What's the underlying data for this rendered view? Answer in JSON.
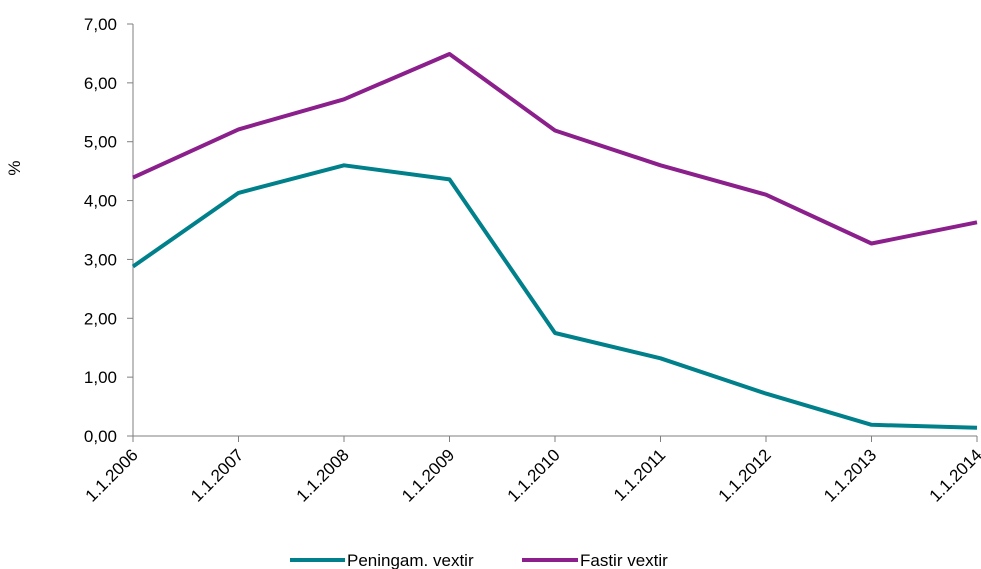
{
  "chart_data": {
    "type": "line",
    "title": "",
    "xlabel": "",
    "ylabel": "%",
    "categories": [
      "1.1.2006",
      "1.1.2007",
      "1.1.2008",
      "1.1.2009",
      "1.1.2010",
      "1.1.2011",
      "1.1.2012",
      "1.1.2013",
      "1.1.2014"
    ],
    "y_ticks": [
      "0,00",
      "1,00",
      "2,00",
      "3,00",
      "4,00",
      "5,00",
      "6,00",
      "7,00"
    ],
    "ylim": [
      0,
      7
    ],
    "grid": false,
    "legend_position": "bottom",
    "series": [
      {
        "name": "Peningam. vextir",
        "color": "#00808a",
        "values": [
          2.88,
          4.13,
          4.6,
          4.36,
          1.75,
          1.32,
          0.72,
          0.19,
          0.14
        ]
      },
      {
        "name": "Fastir vextir",
        "color": "#8b1f8b",
        "values": [
          4.39,
          5.21,
          5.72,
          6.49,
          5.19,
          4.6,
          4.1,
          3.27,
          3.63
        ]
      }
    ]
  }
}
